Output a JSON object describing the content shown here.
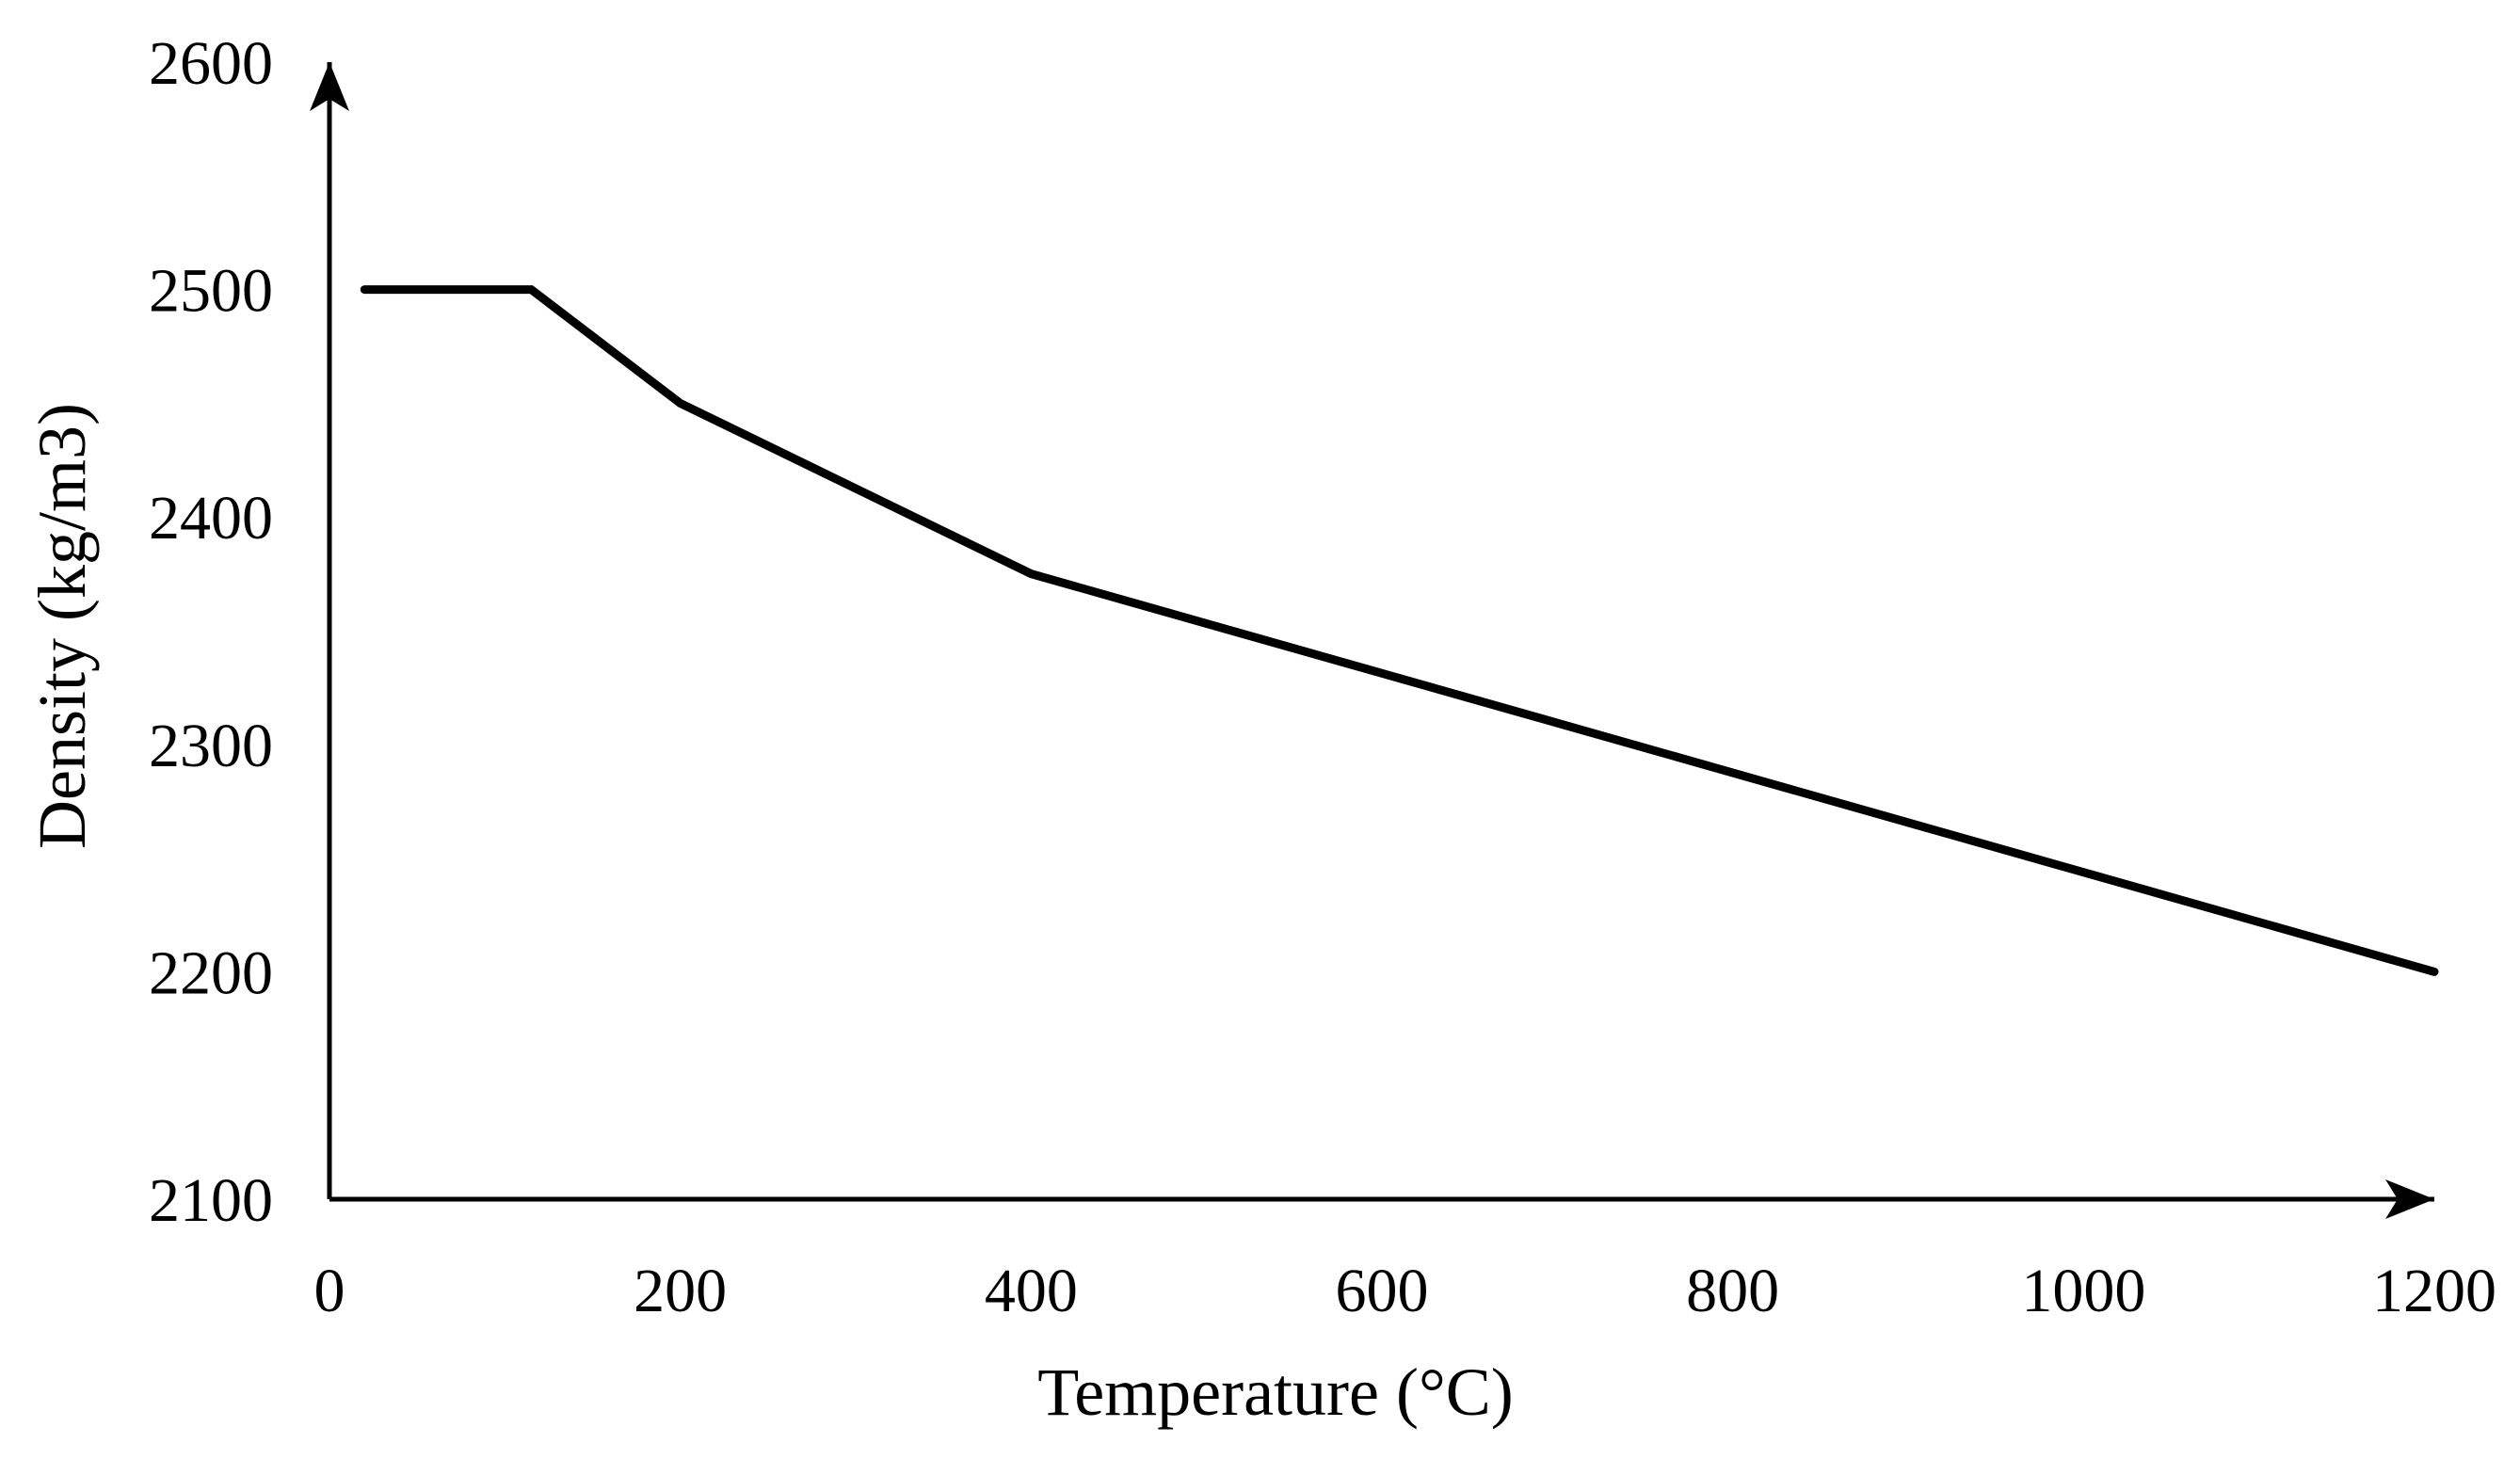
{
  "chart_data": {
    "type": "line",
    "title": "",
    "xlabel": "Temperature (°C)",
    "ylabel": "Density (kg/m3)",
    "xlim": [
      0,
      1200
    ],
    "ylim": [
      2100,
      2600
    ],
    "xticks": [
      0,
      200,
      400,
      600,
      800,
      1000,
      1200
    ],
    "yticks": [
      2100,
      2200,
      2300,
      2400,
      2500,
      2600
    ],
    "grid": false,
    "legend": "none",
    "series": [
      {
        "name": "Density",
        "color": "#000000",
        "x": [
          20,
          115,
          200,
          400,
          1200
        ],
        "y": [
          2500,
          2500,
          2450,
          2375,
          2200
        ]
      }
    ]
  }
}
